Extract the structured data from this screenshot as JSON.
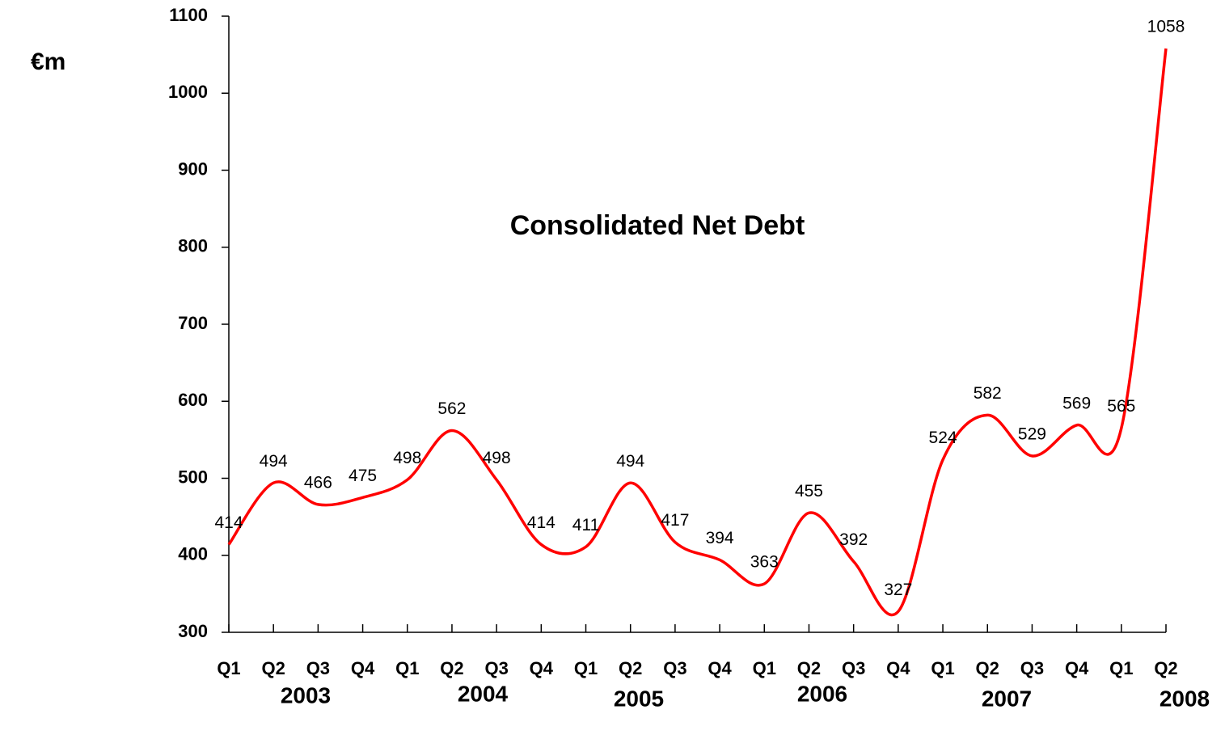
{
  "chart_data": {
    "type": "line",
    "title": "Consolidated Net Debt",
    "y_label": "€m",
    "categories": [
      "Q1",
      "Q2",
      "Q3",
      "Q4",
      "Q1",
      "Q2",
      "Q3",
      "Q4",
      "Q1",
      "Q2",
      "Q3",
      "Q4",
      "Q1",
      "Q2",
      "Q3",
      "Q4",
      "Q1",
      "Q2",
      "Q3",
      "Q4",
      "Q1",
      "Q2"
    ],
    "years": [
      "2003",
      "2004",
      "2005",
      "2006",
      "2007",
      "2008"
    ],
    "series": [
      {
        "name": "Consolidated Net Debt",
        "color": "#ff0000",
        "values": [
          414,
          494,
          466,
          475,
          498,
          562,
          498,
          414,
          411,
          494,
          417,
          394,
          363,
          455,
          392,
          327,
          524,
          582,
          529,
          569,
          565,
          1058
        ]
      }
    ],
    "ylim": [
      300,
      1100
    ],
    "yticks": [
      300,
      400,
      500,
      600,
      700,
      800,
      900,
      1000,
      1100
    ]
  }
}
